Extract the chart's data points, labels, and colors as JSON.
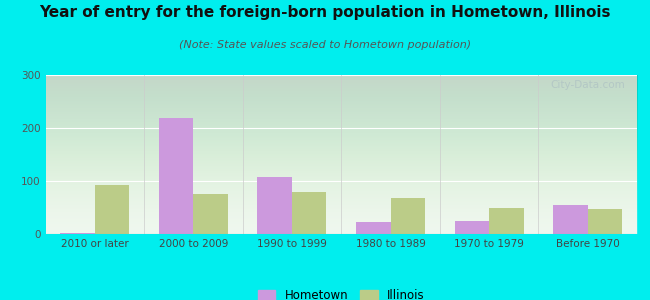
{
  "title": "Year of entry for the foreign-born population in Hometown, Illinois",
  "subtitle": "(Note: State values scaled to Hometown population)",
  "categories": [
    "2010 or later",
    "2000 to 2009",
    "1990 to 1999",
    "1980 to 1989",
    "1970 to 1979",
    "Before 1970"
  ],
  "hometown_values": [
    2,
    218,
    107,
    22,
    25,
    55
  ],
  "illinois_values": [
    92,
    75,
    80,
    68,
    50,
    48
  ],
  "hometown_color": "#cc99dd",
  "illinois_color": "#bbcc88",
  "bg_color": "#00eeee",
  "ylim": [
    0,
    300
  ],
  "yticks": [
    0,
    100,
    200,
    300
  ],
  "title_fontsize": 11,
  "subtitle_fontsize": 8,
  "tick_fontsize": 7.5,
  "legend_fontsize": 8.5,
  "watermark_text": "City-Data.com"
}
